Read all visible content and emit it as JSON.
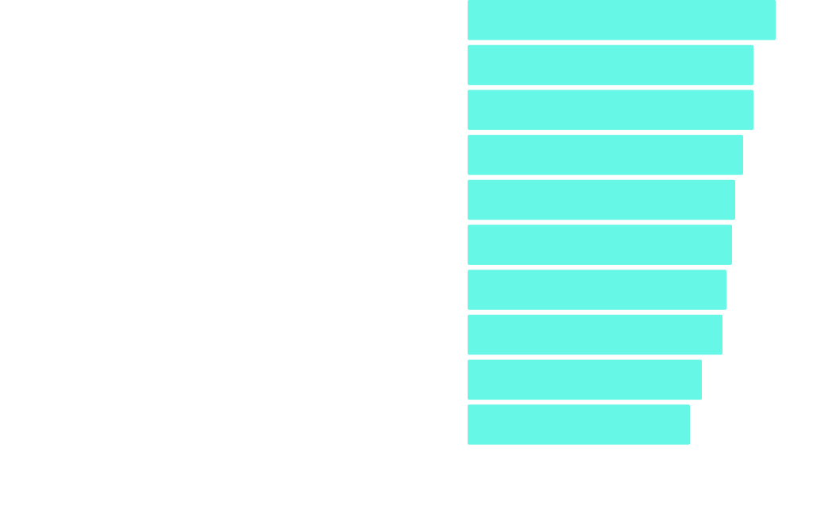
{
  "chart_data": {
    "type": "bar",
    "orientation": "horizontal",
    "categories": [
      null,
      null,
      null,
      null,
      null,
      null,
      null,
      null,
      null,
      null
    ],
    "values": [
      388,
      360,
      360,
      347,
      337,
      333,
      326,
      321,
      295,
      280
    ],
    "color": "#66f7e6",
    "xlim": [
      0,
      400
    ]
  }
}
